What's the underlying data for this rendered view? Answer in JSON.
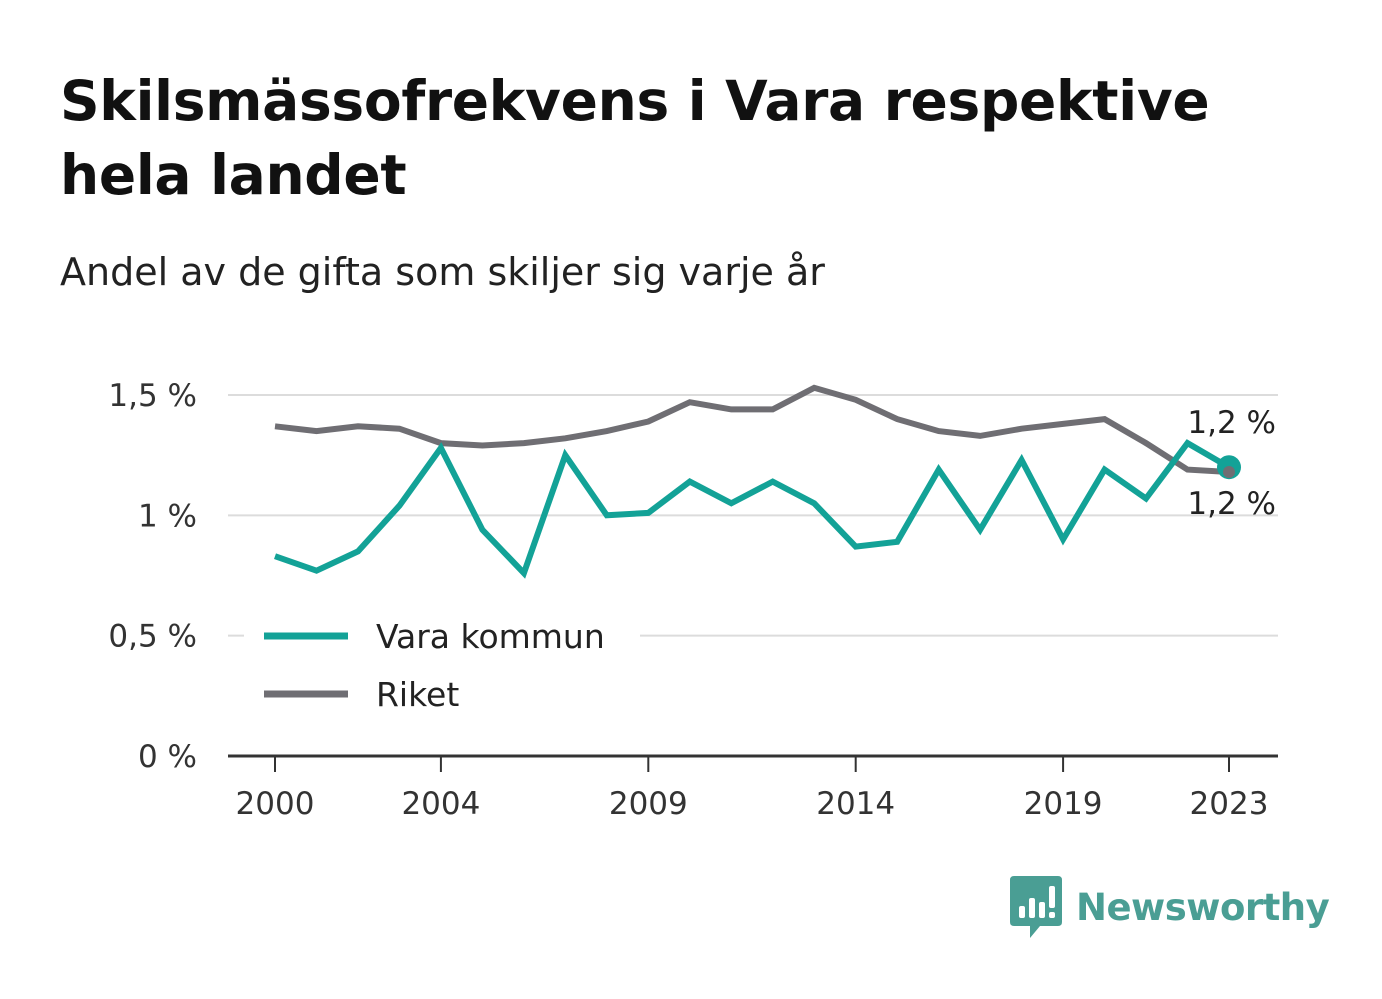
{
  "title": "Skilsmässofrekvens i Vara respektive hela landet",
  "subtitle": "Andel av de gifta som skiljer sig varje år",
  "brand": {
    "name": "Newsworthy",
    "icon": "newsworthy-logo-icon",
    "color": "#4a9e94"
  },
  "chart_data": {
    "type": "line",
    "x": [
      2000,
      2001,
      2002,
      2003,
      2004,
      2005,
      2006,
      2007,
      2008,
      2009,
      2010,
      2011,
      2012,
      2013,
      2014,
      2015,
      2016,
      2017,
      2018,
      2019,
      2020,
      2021,
      2022,
      2023
    ],
    "x_tick_labels": [
      "2000",
      "2004",
      "2009",
      "2014",
      "2019",
      "2023"
    ],
    "x_tick_values": [
      2000,
      2004,
      2009,
      2014,
      2019,
      2023
    ],
    "y_tick_labels": [
      "0 %",
      "0,5 %",
      "1 %",
      "1,5 %"
    ],
    "y_tick_values": [
      0,
      0.5,
      1.0,
      1.5
    ],
    "ylim": [
      0,
      1.5
    ],
    "grid": true,
    "legend_position": "bottom-left",
    "series": [
      {
        "name": "Vara kommun",
        "color": "#13a297",
        "values": [
          0.83,
          0.77,
          0.85,
          1.04,
          1.28,
          0.94,
          0.76,
          1.25,
          1.0,
          1.01,
          1.14,
          1.05,
          1.14,
          1.05,
          0.87,
          0.89,
          1.19,
          0.94,
          1.23,
          0.9,
          1.19,
          1.07,
          1.3,
          1.2
        ],
        "end_label": "1,2 %"
      },
      {
        "name": "Riket",
        "color": "#6f6e73",
        "values": [
          1.37,
          1.35,
          1.37,
          1.36,
          1.3,
          1.29,
          1.3,
          1.32,
          1.35,
          1.39,
          1.47,
          1.44,
          1.44,
          1.53,
          1.48,
          1.4,
          1.35,
          1.33,
          1.36,
          1.38,
          1.4,
          1.3,
          1.19,
          1.18
        ],
        "end_label": "1,2 %"
      }
    ]
  }
}
